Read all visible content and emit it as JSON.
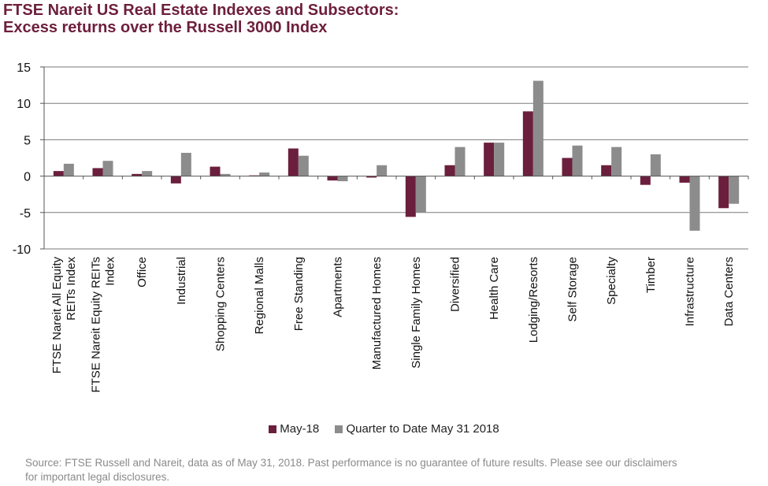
{
  "title_lines": [
    "FTSE Nareit US Real Estate Indexes and Subsectors:",
    "Excess returns over the Russell 3000 Index"
  ],
  "source_lines": [
    "Source: FTSE Russell and Nareit, data as of May 31, 2018. Past performance is no guarantee of future results. Please see our disclaimers",
    "for important legal disclosures."
  ],
  "chart_data": {
    "type": "bar",
    "categories": [
      [
        "FTSE Nareit All Equity",
        "REITs Index"
      ],
      [
        "FTSE Nareit Equity REITs",
        "Index"
      ],
      [
        "Office"
      ],
      [
        "Industrial"
      ],
      [
        "Shopping Centers"
      ],
      [
        "Regional Malls"
      ],
      [
        "Free Standing"
      ],
      [
        "Apartments"
      ],
      [
        "Manufactured Homes"
      ],
      [
        "Single Family Homes"
      ],
      [
        "Diversified"
      ],
      [
        "Health Care"
      ],
      [
        "Lodging/Resorts"
      ],
      [
        "Self Storage"
      ],
      [
        "Specialty"
      ],
      [
        "Timber"
      ],
      [
        "Infrastructure"
      ],
      [
        "Data Centers"
      ]
    ],
    "series": [
      {
        "name": "May-18",
        "color": "#6b1f3c",
        "values": [
          0.7,
          1.1,
          0.3,
          -1.0,
          1.3,
          0.1,
          3.8,
          -0.6,
          -0.2,
          -5.6,
          1.5,
          4.6,
          8.9,
          2.5,
          1.5,
          -1.2,
          -0.9,
          -4.4
        ]
      },
      {
        "name": "Quarter to Date May 31 2018",
        "color": "#8c8c8c",
        "values": [
          1.7,
          2.1,
          0.7,
          3.2,
          0.3,
          0.5,
          2.8,
          -0.7,
          1.5,
          -5.0,
          4.0,
          4.6,
          13.1,
          4.2,
          4.0,
          3.0,
          -7.5,
          -3.8
        ]
      }
    ],
    "ylim": [
      -10,
      15
    ],
    "yticks": [
      -10,
      -5,
      0,
      5,
      10,
      15
    ],
    "grid": true,
    "legend_position": "bottom"
  }
}
